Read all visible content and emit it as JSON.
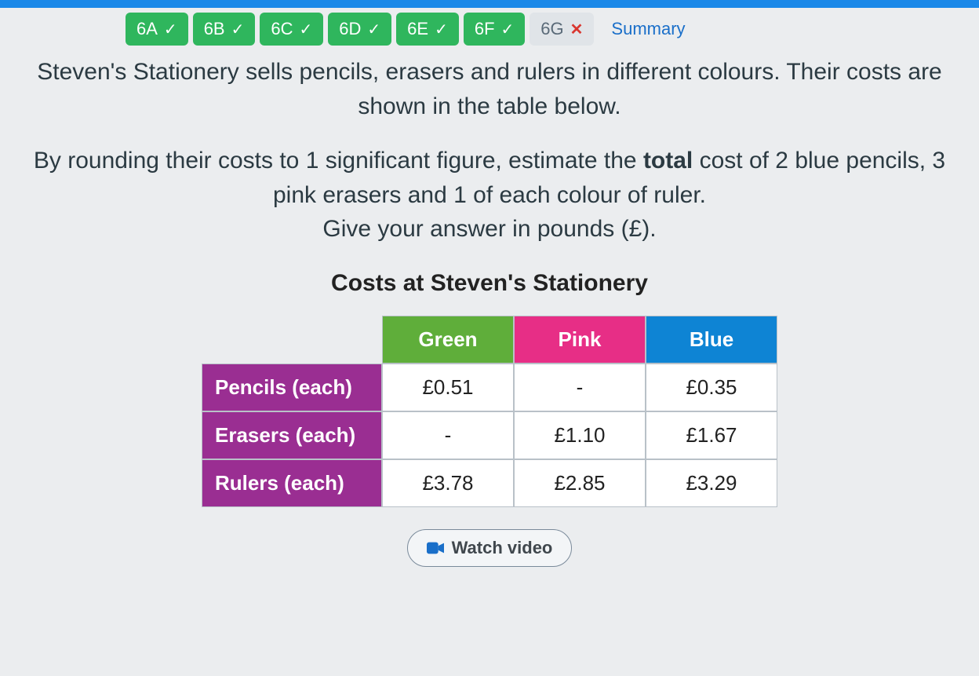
{
  "tabs": [
    {
      "label": "6A",
      "state": "done"
    },
    {
      "label": "6B",
      "state": "done"
    },
    {
      "label": "6C",
      "state": "done"
    },
    {
      "label": "6D",
      "state": "done"
    },
    {
      "label": "6E",
      "state": "done"
    },
    {
      "label": "6F",
      "state": "done"
    },
    {
      "label": "6G",
      "state": "fail"
    }
  ],
  "summary_label": "Summary",
  "question": {
    "line1": "Steven's Stationery sells pencils, erasers and rulers in different colours. Their costs are shown in the table below.",
    "line2_pre": "By rounding their costs to 1 significant figure, estimate the ",
    "line2_bold": "total",
    "line2_post": " cost of 2 blue pencils, 3 pink erasers and 1 of each colour of ruler.",
    "line3": "Give your answer in pounds (£)."
  },
  "table": {
    "title": "Costs at Steven's Stationery",
    "col_headers": [
      "Green",
      "Pink",
      "Blue"
    ],
    "col_colors": [
      "#5fae3a",
      "#e72e86",
      "#0e84d4"
    ],
    "row_headers": [
      "Pencils (each)",
      "Erasers (each)",
      "Rulers (each)"
    ],
    "row_color": "#9a2e92",
    "cells": [
      [
        "£0.51",
        "-",
        "£0.35"
      ],
      [
        "-",
        "£1.10",
        "£1.67"
      ],
      [
        "£3.78",
        "£2.85",
        "£3.29"
      ]
    ],
    "cell_bg": "#ffffff",
    "border_color": "#b9c1c8"
  },
  "watch_video_label": "Watch video",
  "colors": {
    "page_bg": "#ebedef",
    "top_bar": "#1a88e8",
    "tab_done": "#2fb65d",
    "tab_fail_bg": "#e0e4e8",
    "tab_fail_x": "#d9362f",
    "summary_link": "#1a6fc9",
    "video_icon": "#1a6fc9"
  }
}
